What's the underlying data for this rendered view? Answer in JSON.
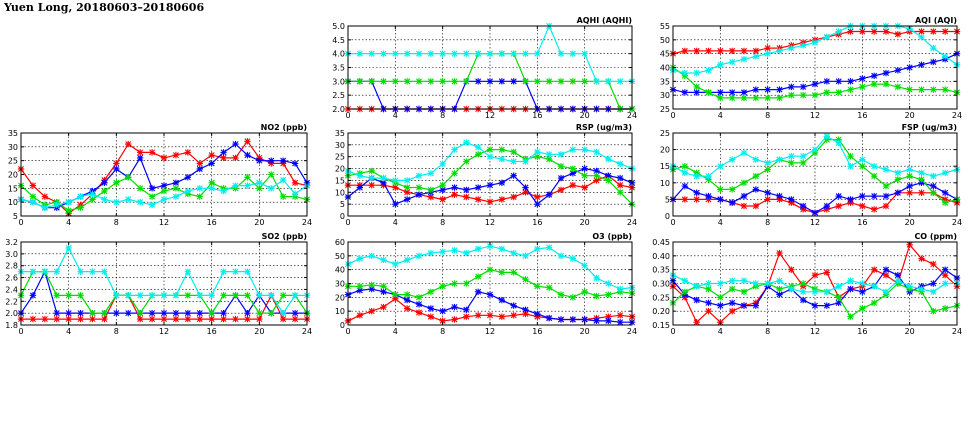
{
  "page": {
    "title": "Yuen Long, 20180603–20180606"
  },
  "series_colors": {
    "A": "#ff0000",
    "B": "#0000ff",
    "C": "#00dd00",
    "D": "#00eeee"
  },
  "chart_data": [
    {
      "id": "aqhi",
      "type": "line",
      "title": "AQHI (AQHI)",
      "xlim": [
        0,
        24
      ],
      "xticks": [
        0,
        4,
        8,
        12,
        16,
        20,
        24
      ],
      "ylim": [
        2.0,
        5.0
      ],
      "yticks": [
        "2.0",
        "2.5",
        "3.0",
        "3.5",
        "4.0",
        "4.5",
        "5.0"
      ],
      "series": [
        {
          "color": "A",
          "values": [
            2,
            2,
            2,
            2,
            2,
            2,
            2,
            2,
            2,
            2,
            2,
            2,
            2,
            2,
            2,
            2,
            2,
            2,
            2,
            2,
            2,
            2,
            2,
            2,
            2
          ]
        },
        {
          "color": "B",
          "values": [
            3,
            3,
            3,
            2,
            2,
            2,
            2,
            2,
            2,
            2,
            3,
            3,
            3,
            3,
            3,
            3,
            2,
            2,
            2,
            2,
            2,
            2,
            2,
            2,
            2
          ]
        },
        {
          "color": "C",
          "values": [
            3,
            3,
            3,
            3,
            3,
            3,
            3,
            3,
            3,
            3,
            3,
            4,
            4,
            4,
            4,
            3,
            3,
            3,
            3,
            3,
            3,
            3,
            3,
            2,
            2
          ]
        },
        {
          "color": "D",
          "values": [
            4,
            4,
            4,
            4,
            4,
            4,
            4,
            4,
            4,
            4,
            4,
            4,
            4,
            4,
            4,
            4,
            4,
            5,
            4,
            4,
            4,
            3,
            3,
            3,
            3
          ]
        }
      ]
    },
    {
      "id": "aqi",
      "type": "line",
      "title": "AQI (AQI)",
      "xlim": [
        0,
        24
      ],
      "xticks": [
        0,
        4,
        8,
        12,
        16,
        20,
        24
      ],
      "ylim": [
        25,
        55
      ],
      "yticks": [
        "25",
        "30",
        "35",
        "40",
        "45",
        "50",
        "55"
      ],
      "series": [
        {
          "color": "A",
          "values": [
            45,
            46,
            46,
            46,
            46,
            46,
            46,
            46,
            47,
            47,
            48,
            49,
            50,
            51,
            52,
            53,
            53,
            53,
            53,
            52,
            53,
            53,
            53,
            53,
            53
          ]
        },
        {
          "color": "B",
          "values": [
            32,
            31,
            31,
            31,
            31,
            31,
            31,
            32,
            32,
            32,
            33,
            33,
            34,
            35,
            35,
            35,
            36,
            37,
            38,
            39,
            40,
            41,
            42,
            43,
            45
          ]
        },
        {
          "color": "C",
          "values": [
            40,
            37,
            33,
            31,
            29,
            29,
            29,
            29,
            29,
            29,
            30,
            30,
            30,
            31,
            31,
            32,
            33,
            34,
            34,
            33,
            32,
            32,
            32,
            32,
            31
          ]
        },
        {
          "color": "D",
          "values": [
            39,
            38,
            38,
            39,
            41,
            42,
            43,
            44,
            45,
            46,
            47,
            48,
            49,
            51,
            53,
            55,
            55,
            55,
            55,
            55,
            54,
            51,
            47,
            44,
            41
          ]
        }
      ]
    },
    {
      "id": "no2",
      "type": "line",
      "title": "NO2 (ppb)",
      "xlim": [
        0,
        24
      ],
      "xticks": [
        0,
        4,
        8,
        12,
        16,
        20,
        24
      ],
      "ylim": [
        5,
        35
      ],
      "yticks": [
        "5",
        "10",
        "15",
        "20",
        "25",
        "30",
        "35"
      ],
      "series": [
        {
          "color": "A",
          "values": [
            22,
            16,
            12,
            10,
            6,
            9,
            13,
            18,
            24,
            31,
            28,
            28,
            26,
            27,
            28,
            24,
            27,
            26,
            26,
            32,
            26,
            24,
            24,
            17,
            16
          ]
        },
        {
          "color": "B",
          "values": [
            11,
            10,
            8,
            8,
            10,
            12,
            14,
            17,
            22,
            19,
            26,
            15,
            16,
            17,
            19,
            22,
            24,
            28,
            31,
            27,
            25,
            25,
            25,
            24,
            17
          ]
        },
        {
          "color": "C",
          "values": [
            16,
            12,
            9,
            10,
            7,
            8,
            11,
            14,
            17,
            19,
            15,
            12,
            14,
            15,
            13,
            12,
            17,
            15,
            15,
            19,
            15,
            20,
            12,
            12,
            11
          ]
        },
        {
          "color": "D",
          "values": [
            11,
            10,
            8,
            9,
            10,
            12,
            13,
            11,
            10,
            11,
            10,
            9,
            11,
            12,
            14,
            15,
            15,
            14,
            16,
            16,
            17,
            15,
            18,
            13,
            16
          ]
        }
      ]
    },
    {
      "id": "rsp",
      "type": "line",
      "title": "RSP (ug/m3)",
      "xlim": [
        0,
        24
      ],
      "xticks": [
        0,
        4,
        8,
        12,
        16,
        20,
        24
      ],
      "ylim": [
        0,
        35
      ],
      "yticks": [
        "0",
        "5",
        "10",
        "15",
        "20",
        "25",
        "30",
        "35"
      ],
      "series": [
        {
          "color": "A",
          "values": [
            13,
            13,
            13,
            13,
            12,
            10,
            9,
            8,
            7,
            9,
            8,
            7,
            6,
            7,
            8,
            10,
            8,
            9,
            11,
            13,
            12,
            15,
            17,
            13,
            12
          ]
        },
        {
          "color": "B",
          "values": [
            8,
            12,
            16,
            14,
            5,
            7,
            9,
            10,
            11,
            12,
            11,
            12,
            13,
            14,
            17,
            12,
            5,
            9,
            16,
            18,
            20,
            19,
            17,
            16,
            14
          ]
        },
        {
          "color": "C",
          "values": [
            17,
            18,
            19,
            16,
            14,
            12,
            12,
            11,
            13,
            18,
            23,
            26,
            28,
            28,
            27,
            24,
            25,
            24,
            21,
            20,
            17,
            17,
            15,
            10,
            5
          ]
        },
        {
          "color": "D",
          "values": [
            19,
            17,
            16,
            16,
            15,
            15,
            17,
            18,
            22,
            28,
            31,
            29,
            25,
            24,
            23,
            23,
            27,
            26,
            26,
            28,
            28,
            27,
            24,
            22,
            20
          ]
        }
      ]
    },
    {
      "id": "fsp",
      "type": "line",
      "title": "FSP (ug/m3)",
      "xlim": [
        0,
        24
      ],
      "xticks": [
        0,
        4,
        8,
        12,
        16,
        20,
        24
      ],
      "ylim": [
        0,
        25
      ],
      "yticks": [
        "0",
        "5",
        "10",
        "15",
        "20",
        "25"
      ],
      "series": [
        {
          "color": "A",
          "values": [
            5,
            5,
            5,
            5,
            5,
            4,
            3,
            3,
            5,
            5,
            4,
            2,
            1,
            2,
            3,
            4,
            3,
            2,
            3,
            7,
            7,
            7,
            7,
            5,
            4
          ]
        },
        {
          "color": "B",
          "values": [
            5,
            9,
            7,
            6,
            5,
            4,
            6,
            8,
            7,
            6,
            5,
            3,
            1,
            3,
            6,
            5,
            6,
            6,
            6,
            7,
            9,
            10,
            9,
            7,
            5
          ]
        },
        {
          "color": "C",
          "values": [
            14,
            15,
            13,
            11,
            8,
            8,
            10,
            12,
            14,
            17,
            16,
            16,
            19,
            23,
            23,
            18,
            15,
            12,
            9,
            11,
            12,
            11,
            7,
            4,
            5
          ]
        },
        {
          "color": "D",
          "values": [
            15,
            13,
            12,
            12,
            15,
            17,
            19,
            17,
            16,
            17,
            18,
            18,
            20,
            24,
            22,
            15,
            17,
            15,
            14,
            13,
            14,
            13,
            12,
            13,
            14
          ]
        }
      ]
    },
    {
      "id": "so2",
      "type": "line",
      "title": "SO2 (ppb)",
      "xlim": [
        0,
        24
      ],
      "xticks": [
        0,
        4,
        8,
        12,
        16,
        20,
        24
      ],
      "ylim": [
        1.8,
        3.2
      ],
      "yticks": [
        "1.8",
        "2.0",
        "2.2",
        "2.4",
        "2.6",
        "2.8",
        "3.0",
        "3.2"
      ],
      "series": [
        {
          "color": "A",
          "values": [
            1.9,
            1.9,
            1.9,
            1.9,
            1.9,
            1.9,
            1.9,
            1.9,
            2.3,
            2.3,
            1.9,
            1.9,
            1.9,
            1.9,
            1.9,
            1.9,
            1.9,
            1.9,
            1.9,
            1.9,
            1.9,
            2.3,
            1.9,
            1.9,
            1.9
          ]
        },
        {
          "color": "B",
          "values": [
            2.0,
            2.3,
            2.7,
            2.0,
            2.0,
            2.0,
            2.0,
            2.0,
            2.0,
            2.0,
            2.0,
            2.0,
            2.0,
            2.0,
            2.0,
            2.0,
            2.0,
            2.0,
            2.3,
            2.0,
            2.3,
            2.0,
            2.0,
            2.0,
            2.0
          ]
        },
        {
          "color": "C",
          "values": [
            2.3,
            2.7,
            2.7,
            2.3,
            2.3,
            2.3,
            2.0,
            2.0,
            2.3,
            2.3,
            2.0,
            2.3,
            2.3,
            2.3,
            2.3,
            2.3,
            2.0,
            2.3,
            2.3,
            2.3,
            2.0,
            2.0,
            2.3,
            2.3,
            2.0
          ]
        },
        {
          "color": "D",
          "values": [
            2.7,
            2.7,
            2.7,
            2.7,
            3.1,
            2.7,
            2.7,
            2.7,
            2.3,
            2.3,
            2.3,
            2.3,
            2.3,
            2.3,
            2.7,
            2.3,
            2.3,
            2.7,
            2.7,
            2.7,
            2.3,
            2.3,
            2.0,
            2.3,
            2.3
          ]
        }
      ]
    },
    {
      "id": "o3",
      "type": "line",
      "title": "O3 (ppb)",
      "xlim": [
        0,
        24
      ],
      "xticks": [
        0,
        4,
        8,
        12,
        16,
        20,
        24
      ],
      "ylim": [
        0,
        60
      ],
      "yticks": [
        "0",
        "10",
        "20",
        "30",
        "40",
        "50",
        "60"
      ],
      "series": [
        {
          "color": "A",
          "values": [
            3,
            7,
            10,
            13,
            19,
            12,
            9,
            6,
            3,
            4,
            6,
            7,
            7,
            6,
            7,
            8,
            6,
            5,
            4,
            4,
            4,
            5,
            6,
            7,
            6
          ]
        },
        {
          "color": "B",
          "values": [
            22,
            25,
            26,
            24,
            22,
            18,
            15,
            12,
            10,
            13,
            11,
            24,
            22,
            18,
            14,
            11,
            8,
            5,
            4,
            4,
            4,
            3,
            3,
            2,
            2
          ]
        },
        {
          "color": "C",
          "values": [
            28,
            28,
            29,
            28,
            22,
            22,
            20,
            24,
            28,
            30,
            30,
            35,
            40,
            38,
            38,
            33,
            28,
            27,
            22,
            20,
            24,
            21,
            22,
            24,
            23
          ]
        },
        {
          "color": "D",
          "values": [
            44,
            48,
            50,
            47,
            44,
            47,
            50,
            52,
            53,
            54,
            52,
            55,
            57,
            55,
            52,
            50,
            55,
            56,
            50,
            48,
            43,
            34,
            30,
            26,
            27
          ]
        }
      ]
    },
    {
      "id": "co",
      "type": "line",
      "title": "CO (ppm)",
      "xlim": [
        0,
        24
      ],
      "xticks": [
        0,
        4,
        8,
        12,
        16,
        20,
        24
      ],
      "ylim": [
        0.15,
        0.45
      ],
      "yticks": [
        "0.15",
        "0.20",
        "0.25",
        "0.30",
        "0.35",
        "0.40",
        "0.45"
      ],
      "series": [
        {
          "color": "A",
          "values": [
            0.29,
            0.25,
            0.16,
            0.2,
            0.16,
            0.2,
            0.22,
            0.23,
            0.29,
            0.41,
            0.35,
            0.29,
            0.33,
            0.34,
            0.25,
            0.28,
            0.29,
            0.35,
            0.33,
            0.3,
            0.44,
            0.39,
            0.37,
            0.33,
            0.29
          ]
        },
        {
          "color": "B",
          "values": [
            0.31,
            0.26,
            0.24,
            0.23,
            0.22,
            0.23,
            0.22,
            0.22,
            0.29,
            0.26,
            0.28,
            0.24,
            0.22,
            0.22,
            0.23,
            0.28,
            0.27,
            0.29,
            0.35,
            0.33,
            0.27,
            0.29,
            0.3,
            0.35,
            0.32
          ]
        },
        {
          "color": "C",
          "values": [
            0.23,
            0.27,
            0.29,
            0.28,
            0.25,
            0.28,
            0.27,
            0.29,
            0.3,
            0.28,
            0.29,
            0.3,
            0.28,
            0.27,
            0.25,
            0.18,
            0.21,
            0.23,
            0.26,
            0.3,
            0.28,
            0.27,
            0.2,
            0.21,
            0.22
          ]
        },
        {
          "color": "D",
          "values": [
            0.33,
            0.31,
            0.29,
            0.3,
            0.3,
            0.31,
            0.31,
            0.3,
            0.3,
            0.31,
            0.28,
            0.27,
            0.27,
            0.27,
            0.29,
            0.31,
            0.3,
            0.29,
            0.27,
            0.31,
            0.29,
            0.28,
            0.27,
            0.3,
            0.3
          ]
        }
      ]
    }
  ]
}
